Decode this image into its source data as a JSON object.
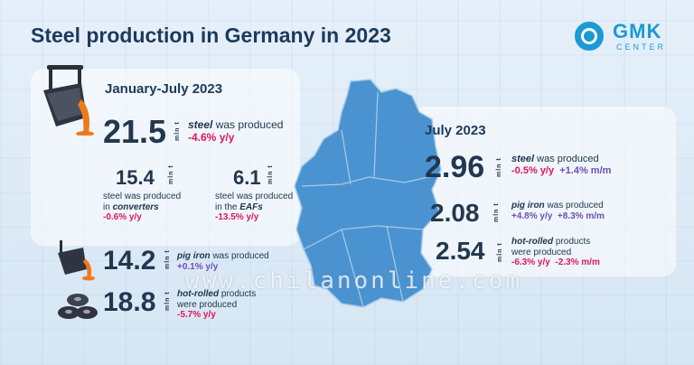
{
  "title": "Steel production in Germany in 2023",
  "logo": {
    "name": "GMK",
    "sub": "CENTER"
  },
  "watermark": "www.chilanonline.com",
  "left_section": {
    "heading": "January-July 2023",
    "unit": "mln t",
    "steel": {
      "value": "21.5",
      "label": "steel",
      "text": "was produced",
      "change": "-4.6%",
      "change_unit": "y/y"
    },
    "converters": {
      "value": "15.4",
      "line1": "steel was produced",
      "line2_pre": "in",
      "line2_em": "converters",
      "change": "-0.6%",
      "change_unit": "y/y"
    },
    "eafs": {
      "value": "6.1",
      "line1": "steel was produced",
      "line2_pre": "in the",
      "line2_em": "EAFs",
      "change": "-13.5%",
      "change_unit": "y/y"
    },
    "pig_iron": {
      "value": "14.2",
      "label": "pig iron",
      "text": "was produced",
      "change": "+0.1%",
      "change_unit": "y/y"
    },
    "hot_rolled": {
      "value": "18.8",
      "label": "hot-rolled",
      "text": "products",
      "line2": "were produced",
      "change": "-5.7%",
      "change_unit": "y/y"
    }
  },
  "right_section": {
    "heading": "July 2023",
    "unit": "mln t",
    "steel": {
      "value": "2.96",
      "label": "steel",
      "text": "was produced",
      "yy": "-0.5%",
      "yy_unit": "y/y",
      "mm": "+1.4%",
      "mm_unit": "m/m"
    },
    "pig_iron": {
      "value": "2.08",
      "label": "pig iron",
      "text": "was produced",
      "yy": "+4.8%",
      "yy_unit": "y/y",
      "mm": "+8.3%",
      "mm_unit": "m/m"
    },
    "hot_rolled": {
      "value": "2.54",
      "label": "hot-rolled",
      "text": "products",
      "line2": "were produced",
      "yy": "-6.3%",
      "yy_unit": "y/y",
      "mm": "-2.3%",
      "mm_unit": "m/m"
    }
  },
  "icons": {
    "ladle": "ladle-pour-icon",
    "small_ladle": "ladle-icon",
    "coils": "steel-coils-icon",
    "map": "germany-map"
  },
  "colors": {
    "accent": "#1c9ad6",
    "negative": "#e0165e",
    "positive": "#6a4fb8",
    "text": "#22374f",
    "map": "#4a93d0",
    "molten": "#f07a1a"
  }
}
